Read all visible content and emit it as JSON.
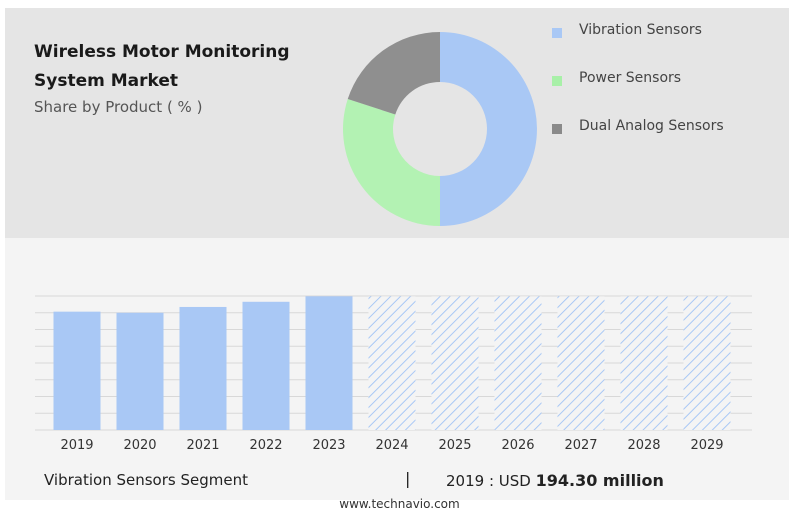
{
  "header": {
    "title": "Wireless Motor Monitoring System Market",
    "subtitle": "Share by Product ( % )"
  },
  "legend": [
    {
      "label": "Vibration Sensors",
      "color": "#a9c8f5"
    },
    {
      "label": "Power Sensors",
      "color": "#a8f0a8"
    },
    {
      "label": "Dual Analog Sensors",
      "color": "#8a8a8a"
    }
  ],
  "footer": {
    "segment": "Vibration Sensors Segment",
    "separator": "|",
    "year_label": "2019 : USD",
    "value": "194.30 million",
    "website": "www.technavio.com"
  },
  "chart_data": [
    {
      "type": "pie",
      "donut": true,
      "categories": [
        "Vibration Sensors",
        "Power Sensors",
        "Dual Analog Sensors"
      ],
      "values": [
        50,
        30,
        20
      ],
      "colors": [
        "#a9c8f5",
        "#b3f2b3",
        "#8f8f8f"
      ]
    },
    {
      "type": "bar",
      "categories": [
        "2019",
        "2020",
        "2021",
        "2022",
        "2023",
        "2024",
        "2025",
        "2026",
        "2027",
        "2028",
        "2029"
      ],
      "values": [
        194.3,
        192.5,
        202.0,
        210.5,
        219.5,
        null,
        null,
        null,
        null,
        null,
        null
      ],
      "forecast": [
        false,
        false,
        false,
        false,
        false,
        true,
        true,
        true,
        true,
        true,
        true
      ],
      "forecast_height": 219.5,
      "ylim": [
        0,
        220
      ],
      "grid": true,
      "bar_color": "#a9c8f5",
      "xlabel": "",
      "ylabel": ""
    }
  ]
}
